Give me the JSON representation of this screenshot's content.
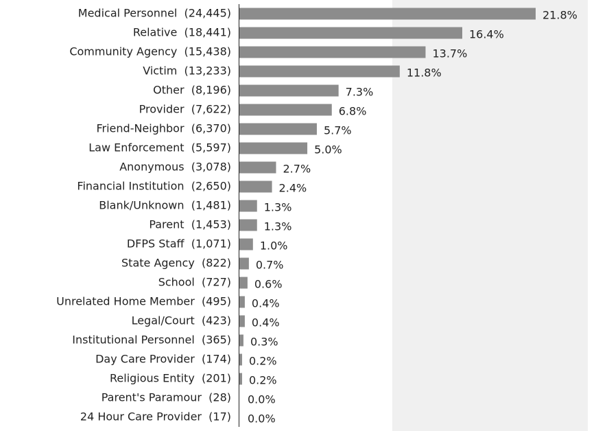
{
  "chart_data": {
    "type": "barh",
    "categories": [
      "Medical Personnel  (24,445)",
      "Relative  (18,441)",
      "Community Agency  (15,438)",
      "Victim  (13,233)",
      "Other  (8,196)",
      "Provider  (7,622)",
      "Friend-Neighbor  (6,370)",
      "Law Enforcement  (5,597)",
      "Anonymous  (3,078)",
      "Financial Institution  (2,650)",
      "Blank/Unknown  (1,481)",
      "Parent  (1,453)",
      "DFPS Staff  (1,071)",
      "State Agency  (822)",
      "School  (727)",
      "Unrelated Home Member  (495)",
      "Legal/Court  (423)",
      "Institutional Personnel  (365)",
      "Day Care Provider  (174)",
      "Religious Entity  (201)",
      "Parent's Paramour  (28)",
      "24 Hour Care Provider  (17)"
    ],
    "values": [
      21.8,
      16.4,
      13.7,
      11.8,
      7.3,
      6.8,
      5.7,
      5.0,
      2.7,
      2.4,
      1.3,
      1.3,
      1.0,
      0.7,
      0.6,
      0.4,
      0.4,
      0.3,
      0.2,
      0.2,
      0.0,
      0.0
    ],
    "value_labels": [
      "21.8%",
      "16.4%",
      "13.7%",
      "11.8%",
      "7.3%",
      "6.8%",
      "5.7%",
      "5.0%",
      "2.7%",
      "2.4%",
      "1.3%",
      "1.3%",
      "1.0%",
      "0.7%",
      "0.6%",
      "0.4%",
      "0.4%",
      "0.3%",
      "0.2%",
      "0.2%",
      "0.0%",
      "0.0%"
    ],
    "color": "#8c8c8c"
  }
}
